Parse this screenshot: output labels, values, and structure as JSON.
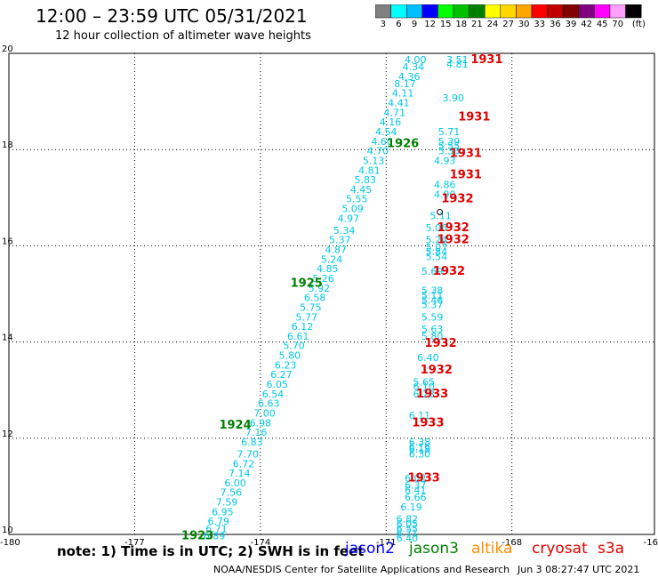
{
  "header": {
    "title": "12:00 – 23:59 UTC 05/31/2021",
    "subtitle": "12 hour collection of altimeter wave heights"
  },
  "legend": {
    "colors": [
      "#808080",
      "#00ffff",
      "#00bfff",
      "#0000ff",
      "#00ff00",
      "#00c000",
      "#008000",
      "#ffff00",
      "#ffd700",
      "#ffa500",
      "#ff0000",
      "#c00000",
      "#800000",
      "#800080",
      "#ff00ff",
      "#ffa0ff",
      "#000000"
    ],
    "labels": [
      "3",
      "6",
      "9",
      "12",
      "15",
      "18",
      "21",
      "24",
      "27",
      "30",
      "33",
      "36",
      "39",
      "42",
      "45",
      "70",
      "(ft)"
    ]
  },
  "axes": {
    "lon_ticks": [
      "-180",
      "-177",
      "-174",
      "-171",
      "-168",
      "-16"
    ],
    "lat_ticks": [
      "20",
      "18",
      "16",
      "14",
      "12",
      "10"
    ]
  },
  "chart_data": {
    "type": "scatter",
    "xlim": [
      -180,
      -164.6
    ],
    "ylim": [
      10,
      20
    ],
    "grid": true,
    "track_a": [
      {
        "lon": -170.3,
        "lat": 19.8,
        "v": "4.00"
      },
      {
        "lon": -170.35,
        "lat": 19.65,
        "v": "4.34"
      },
      {
        "lon": -170.45,
        "lat": 19.45,
        "v": "4.36"
      },
      {
        "lon": -170.55,
        "lat": 19.3,
        "v": "8.17"
      },
      {
        "lon": -170.6,
        "lat": 19.1,
        "v": "4.11"
      },
      {
        "lon": -170.7,
        "lat": 18.9,
        "v": "4.41"
      },
      {
        "lon": -170.8,
        "lat": 18.7,
        "v": "4.71"
      },
      {
        "lon": -170.9,
        "lat": 18.5,
        "v": "4.16"
      },
      {
        "lon": -171.0,
        "lat": 18.3,
        "v": "4.54"
      },
      {
        "lon": -171.1,
        "lat": 18.1,
        "v": "4.60"
      },
      {
        "lon": -171.2,
        "lat": 17.9,
        "v": "4.70"
      },
      {
        "lon": -171.3,
        "lat": 17.7,
        "v": "5.13"
      },
      {
        "lon": -171.4,
        "lat": 17.5,
        "v": "4.81"
      },
      {
        "lon": -171.5,
        "lat": 17.3,
        "v": "5.83"
      },
      {
        "lon": -171.6,
        "lat": 17.1,
        "v": "4.45"
      },
      {
        "lon": -171.7,
        "lat": 16.9,
        "v": "5.55"
      },
      {
        "lon": -171.8,
        "lat": 16.7,
        "v": "5.09"
      },
      {
        "lon": -171.9,
        "lat": 16.5,
        "v": "4.97"
      },
      {
        "lon": -172.0,
        "lat": 16.25,
        "v": "5.34"
      },
      {
        "lon": -172.1,
        "lat": 16.05,
        "v": "5.37"
      },
      {
        "lon": -172.2,
        "lat": 15.85,
        "v": "4.87"
      },
      {
        "lon": -172.3,
        "lat": 15.65,
        "v": "5.24"
      },
      {
        "lon": -172.4,
        "lat": 15.45,
        "v": "4.85"
      },
      {
        "lon": -172.5,
        "lat": 15.25,
        "v": "5.26"
      },
      {
        "lon": -172.6,
        "lat": 15.05,
        "v": "5.92"
      },
      {
        "lon": -172.7,
        "lat": 14.85,
        "v": "6.58"
      },
      {
        "lon": -172.8,
        "lat": 14.65,
        "v": "5.75"
      },
      {
        "lon": -172.9,
        "lat": 14.45,
        "v": "5.77"
      },
      {
        "lon": -173.0,
        "lat": 14.25,
        "v": "6.12"
      },
      {
        "lon": -173.1,
        "lat": 14.05,
        "v": "6.61"
      },
      {
        "lon": -173.2,
        "lat": 13.85,
        "v": "5.70"
      },
      {
        "lon": -173.3,
        "lat": 13.65,
        "v": "5.80"
      },
      {
        "lon": -173.4,
        "lat": 13.45,
        "v": "6.23"
      },
      {
        "lon": -173.5,
        "lat": 13.25,
        "v": "6.27"
      },
      {
        "lon": -173.6,
        "lat": 13.05,
        "v": "6.05"
      },
      {
        "lon": -173.7,
        "lat": 12.85,
        "v": "6.54"
      },
      {
        "lon": -173.8,
        "lat": 12.65,
        "v": "6.63"
      },
      {
        "lon": -173.9,
        "lat": 12.45,
        "v": "7.00"
      },
      {
        "lon": -174.0,
        "lat": 12.25,
        "v": "6.98"
      },
      {
        "lon": -174.1,
        "lat": 12.05,
        "v": "7.16"
      },
      {
        "lon": -174.2,
        "lat": 11.85,
        "v": "6.83"
      },
      {
        "lon": -174.3,
        "lat": 11.6,
        "v": "7.70"
      },
      {
        "lon": -174.4,
        "lat": 11.4,
        "v": "6.72"
      },
      {
        "lon": -174.5,
        "lat": 11.2,
        "v": "7.14"
      },
      {
        "lon": -174.6,
        "lat": 11.0,
        "v": "6.00"
      },
      {
        "lon": -174.7,
        "lat": 10.8,
        "v": "7.56"
      },
      {
        "lon": -174.8,
        "lat": 10.6,
        "v": "7.59"
      },
      {
        "lon": -174.9,
        "lat": 10.4,
        "v": "6.95"
      },
      {
        "lon": -175.0,
        "lat": 10.2,
        "v": "6.79"
      },
      {
        "lon": -175.05,
        "lat": 10.05,
        "v": "6.71"
      },
      {
        "lon": -175.1,
        "lat": 9.9,
        "v": "6.89"
      }
    ],
    "track_b": [
      {
        "lon": -169.3,
        "lat": 19.8,
        "v": "3.51"
      },
      {
        "lon": -169.3,
        "lat": 19.7,
        "v": "4.81"
      },
      {
        "lon": -169.4,
        "lat": 19.0,
        "v": "3.90"
      },
      {
        "lon": -169.5,
        "lat": 18.3,
        "v": "5.71"
      },
      {
        "lon": -169.5,
        "lat": 18.1,
        "v": "5.39"
      },
      {
        "lon": -169.5,
        "lat": 18.0,
        "v": "5.55"
      },
      {
        "lon": -169.5,
        "lat": 17.9,
        "v": "5.33"
      },
      {
        "lon": -169.6,
        "lat": 17.7,
        "v": "4.93"
      },
      {
        "lon": -169.6,
        "lat": 17.2,
        "v": "4.86"
      },
      {
        "lon": -169.6,
        "lat": 17.0,
        "v": "4.90"
      },
      {
        "lon": -169.7,
        "lat": 16.55,
        "v": "5.11"
      },
      {
        "lon": -169.8,
        "lat": 16.3,
        "v": "5.06"
      },
      {
        "lon": -169.8,
        "lat": 16.05,
        "v": "5.24"
      },
      {
        "lon": -169.8,
        "lat": 15.9,
        "v": "5.07"
      },
      {
        "lon": -169.8,
        "lat": 15.8,
        "v": "5.84"
      },
      {
        "lon": -169.8,
        "lat": 15.7,
        "v": "5.54"
      },
      {
        "lon": -169.9,
        "lat": 15.4,
        "v": "5.69"
      },
      {
        "lon": -169.9,
        "lat": 15.0,
        "v": "5.38"
      },
      {
        "lon": -169.9,
        "lat": 14.9,
        "v": "5.11"
      },
      {
        "lon": -169.9,
        "lat": 14.8,
        "v": "5.46"
      },
      {
        "lon": -169.9,
        "lat": 14.7,
        "v": "5.37"
      },
      {
        "lon": -169.9,
        "lat": 14.45,
        "v": "5.59"
      },
      {
        "lon": -169.9,
        "lat": 14.2,
        "v": "5.63"
      },
      {
        "lon": -169.9,
        "lat": 14.05,
        "v": "5.80"
      },
      {
        "lon": -170.0,
        "lat": 13.6,
        "v": "6.40"
      },
      {
        "lon": -170.1,
        "lat": 13.1,
        "v": "5.65"
      },
      {
        "lon": -170.1,
        "lat": 13.0,
        "v": "6.10"
      },
      {
        "lon": -170.1,
        "lat": 12.85,
        "v": "6.23"
      },
      {
        "lon": -170.2,
        "lat": 12.4,
        "v": "6.11"
      },
      {
        "lon": -170.2,
        "lat": 11.85,
        "v": "6.38"
      },
      {
        "lon": -170.2,
        "lat": 11.75,
        "v": "6.16"
      },
      {
        "lon": -170.2,
        "lat": 11.7,
        "v": "6.18"
      },
      {
        "lon": -170.2,
        "lat": 11.6,
        "v": "6.30"
      },
      {
        "lon": -170.3,
        "lat": 11.1,
        "v": "6.02"
      },
      {
        "lon": -170.3,
        "lat": 10.95,
        "v": "6.37"
      },
      {
        "lon": -170.3,
        "lat": 10.85,
        "v": "6.41"
      },
      {
        "lon": -170.3,
        "lat": 10.7,
        "v": "6.66"
      },
      {
        "lon": -170.4,
        "lat": 10.5,
        "v": "6.19"
      },
      {
        "lon": -170.5,
        "lat": 10.25,
        "v": "6.82"
      },
      {
        "lon": -170.5,
        "lat": 10.15,
        "v": "6.05"
      },
      {
        "lon": -170.5,
        "lat": 10.05,
        "v": "6.55"
      },
      {
        "lon": -170.5,
        "lat": 9.95,
        "v": "6.71"
      },
      {
        "lon": -170.5,
        "lat": 9.85,
        "v": "6.40"
      }
    ],
    "time_labels": [
      {
        "lon": -168.6,
        "lat": 19.8,
        "t": "1931",
        "c": "#e00000"
      },
      {
        "lon": -168.9,
        "lat": 18.6,
        "t": "1931",
        "c": "#e00000"
      },
      {
        "lon": -169.1,
        "lat": 17.85,
        "t": "1931",
        "c": "#e00000"
      },
      {
        "lon": -169.1,
        "lat": 17.4,
        "t": "1931",
        "c": "#e00000"
      },
      {
        "lon": -169.3,
        "lat": 16.9,
        "t": "1932",
        "c": "#e00000"
      },
      {
        "lon": -169.4,
        "lat": 16.3,
        "t": "1932",
        "c": "#e00000"
      },
      {
        "lon": -169.4,
        "lat": 16.05,
        "t": "1932",
        "c": "#e00000"
      },
      {
        "lon": -169.5,
        "lat": 15.4,
        "t": "1932",
        "c": "#e00000"
      },
      {
        "lon": -169.7,
        "lat": 13.9,
        "t": "1932",
        "c": "#e00000"
      },
      {
        "lon": -169.8,
        "lat": 13.35,
        "t": "1932",
        "c": "#e00000"
      },
      {
        "lon": -169.9,
        "lat": 12.85,
        "t": "1933",
        "c": "#e00000"
      },
      {
        "lon": -170.0,
        "lat": 12.25,
        "t": "1933",
        "c": "#e00000"
      },
      {
        "lon": -170.1,
        "lat": 11.1,
        "t": "1933",
        "c": "#e00000"
      },
      {
        "lon": -170.6,
        "lat": 18.05,
        "t": "1926",
        "c": "#008000"
      },
      {
        "lon": -172.9,
        "lat": 15.15,
        "t": "1925",
        "c": "#008000"
      },
      {
        "lon": -174.6,
        "lat": 12.2,
        "t": "1924",
        "c": "#008000"
      },
      {
        "lon": -175.5,
        "lat": 9.9,
        "t": "1923",
        "c": "#008000"
      }
    ]
  },
  "footer": {
    "note": "note: 1) Time is in UTC; 2) SWH is in feet",
    "satellites": [
      "jason2",
      "jason3",
      "altika",
      "cryosat",
      "s3a"
    ],
    "sat_colors": [
      "#0000ff",
      "#008000",
      "#ff8c00",
      "#e00000",
      "#e00000"
    ],
    "credit": "NOAA/NESDIS Center for Satellite Applications and Research",
    "date": "Jun  3 08:27:47 UTC 2021"
  }
}
